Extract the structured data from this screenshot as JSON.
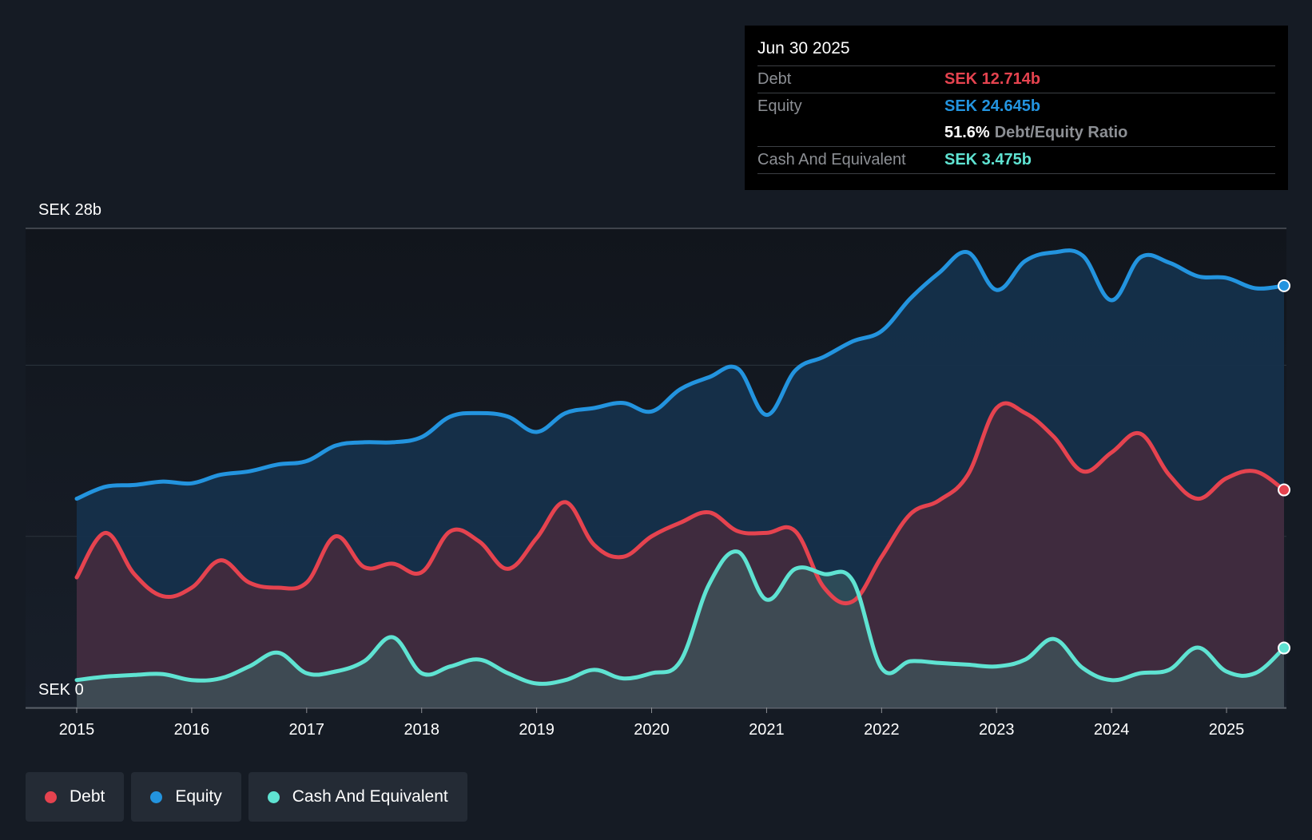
{
  "tooltip": {
    "date": "Jun 30 2025",
    "debt_label": "Debt",
    "debt_value": "SEK 12.714b",
    "equity_label": "Equity",
    "equity_value": "SEK 24.645b",
    "ratio_value": "51.6%",
    "ratio_label": "Debt/Equity Ratio",
    "cash_label": "Cash And Equivalent",
    "cash_value": "SEK 3.475b"
  },
  "legend": [
    {
      "label": "Debt",
      "color": "#e5434f"
    },
    {
      "label": "Equity",
      "color": "#2394df"
    },
    {
      "label": "Cash And Equivalent",
      "color": "#5fe3d2"
    }
  ],
  "chart_data": {
    "type": "area",
    "title": "",
    "ylabel_top": "SEK 28b",
    "ylabel_bottom": "SEK 0",
    "ylim": [
      0,
      28
    ],
    "xlim": [
      2015,
      2025.5
    ],
    "x_ticks": [
      "2015",
      "2016",
      "2017",
      "2018",
      "2019",
      "2020",
      "2021",
      "2022",
      "2023",
      "2024",
      "2025"
    ],
    "gridlines": [
      0,
      10,
      20,
      28
    ],
    "series": [
      {
        "name": "Equity",
        "color": "#2394df",
        "points": [
          [
            2015.0,
            12.2
          ],
          [
            2015.25,
            12.9
          ],
          [
            2015.5,
            13.0
          ],
          [
            2015.75,
            13.2
          ],
          [
            2016.0,
            13.1
          ],
          [
            2016.25,
            13.6
          ],
          [
            2016.5,
            13.8
          ],
          [
            2016.75,
            14.2
          ],
          [
            2017.0,
            14.4
          ],
          [
            2017.25,
            15.3
          ],
          [
            2017.5,
            15.5
          ],
          [
            2017.75,
            15.5
          ],
          [
            2018.0,
            15.8
          ],
          [
            2018.25,
            17.0
          ],
          [
            2018.5,
            17.2
          ],
          [
            2018.75,
            17.0
          ],
          [
            2019.0,
            16.1
          ],
          [
            2019.25,
            17.2
          ],
          [
            2019.5,
            17.5
          ],
          [
            2019.75,
            17.8
          ],
          [
            2020.0,
            17.3
          ],
          [
            2020.25,
            18.6
          ],
          [
            2020.5,
            19.3
          ],
          [
            2020.75,
            19.8
          ],
          [
            2021.0,
            17.1
          ],
          [
            2021.25,
            19.7
          ],
          [
            2021.5,
            20.5
          ],
          [
            2021.75,
            21.4
          ],
          [
            2022.0,
            22.0
          ],
          [
            2022.25,
            23.9
          ],
          [
            2022.5,
            25.4
          ],
          [
            2022.75,
            26.6
          ],
          [
            2023.0,
            24.4
          ],
          [
            2023.25,
            26.1
          ],
          [
            2023.5,
            26.6
          ],
          [
            2023.75,
            26.4
          ],
          [
            2024.0,
            23.8
          ],
          [
            2024.25,
            26.3
          ],
          [
            2024.5,
            26.0
          ],
          [
            2024.75,
            25.2
          ],
          [
            2025.0,
            25.1
          ],
          [
            2025.25,
            24.5
          ],
          [
            2025.5,
            24.645
          ]
        ]
      },
      {
        "name": "Debt",
        "color": "#e5434f",
        "points": [
          [
            2015.0,
            7.6
          ],
          [
            2015.25,
            10.2
          ],
          [
            2015.5,
            7.8
          ],
          [
            2015.75,
            6.5
          ],
          [
            2016.0,
            7.0
          ],
          [
            2016.25,
            8.6
          ],
          [
            2016.5,
            7.3
          ],
          [
            2016.75,
            7.0
          ],
          [
            2017.0,
            7.3
          ],
          [
            2017.25,
            10.0
          ],
          [
            2017.5,
            8.2
          ],
          [
            2017.75,
            8.4
          ],
          [
            2018.0,
            7.9
          ],
          [
            2018.25,
            10.3
          ],
          [
            2018.5,
            9.7
          ],
          [
            2018.75,
            8.1
          ],
          [
            2019.0,
            9.9
          ],
          [
            2019.25,
            12.0
          ],
          [
            2019.5,
            9.5
          ],
          [
            2019.75,
            8.8
          ],
          [
            2020.0,
            10.0
          ],
          [
            2020.25,
            10.8
          ],
          [
            2020.5,
            11.4
          ],
          [
            2020.75,
            10.3
          ],
          [
            2021.0,
            10.2
          ],
          [
            2021.25,
            10.3
          ],
          [
            2021.5,
            7.0
          ],
          [
            2021.75,
            6.2
          ],
          [
            2022.0,
            8.8
          ],
          [
            2022.25,
            11.3
          ],
          [
            2022.5,
            12.1
          ],
          [
            2022.75,
            13.6
          ],
          [
            2023.0,
            17.5
          ],
          [
            2023.25,
            17.2
          ],
          [
            2023.5,
            15.8
          ],
          [
            2023.75,
            13.8
          ],
          [
            2024.0,
            14.9
          ],
          [
            2024.25,
            16.0
          ],
          [
            2024.5,
            13.6
          ],
          [
            2024.75,
            12.2
          ],
          [
            2025.0,
            13.4
          ],
          [
            2025.25,
            13.8
          ],
          [
            2025.5,
            12.714
          ]
        ]
      },
      {
        "name": "Cash And Equivalent",
        "color": "#5fe3d2",
        "points": [
          [
            2015.0,
            1.6
          ],
          [
            2015.25,
            1.8
          ],
          [
            2015.5,
            1.9
          ],
          [
            2015.75,
            1.95
          ],
          [
            2016.0,
            1.6
          ],
          [
            2016.25,
            1.7
          ],
          [
            2016.5,
            2.4
          ],
          [
            2016.75,
            3.2
          ],
          [
            2017.0,
            2.0
          ],
          [
            2017.25,
            2.1
          ],
          [
            2017.5,
            2.7
          ],
          [
            2017.75,
            4.1
          ],
          [
            2018.0,
            2.0
          ],
          [
            2018.25,
            2.4
          ],
          [
            2018.5,
            2.8
          ],
          [
            2018.75,
            2.0
          ],
          [
            2019.0,
            1.4
          ],
          [
            2019.25,
            1.6
          ],
          [
            2019.5,
            2.2
          ],
          [
            2019.75,
            1.7
          ],
          [
            2020.0,
            2.0
          ],
          [
            2020.25,
            2.7
          ],
          [
            2020.5,
            7.2
          ],
          [
            2020.75,
            9.1
          ],
          [
            2021.0,
            6.3
          ],
          [
            2021.25,
            8.1
          ],
          [
            2021.5,
            7.8
          ],
          [
            2021.75,
            7.4
          ],
          [
            2022.0,
            2.3
          ],
          [
            2022.25,
            2.7
          ],
          [
            2022.5,
            2.6
          ],
          [
            2022.75,
            2.5
          ],
          [
            2023.0,
            2.4
          ],
          [
            2023.25,
            2.8
          ],
          [
            2023.5,
            4.0
          ],
          [
            2023.75,
            2.3
          ],
          [
            2024.0,
            1.6
          ],
          [
            2024.25,
            2.0
          ],
          [
            2024.5,
            2.2
          ],
          [
            2024.75,
            3.5
          ],
          [
            2025.0,
            2.1
          ],
          [
            2025.25,
            2.0
          ],
          [
            2025.5,
            3.475
          ]
        ]
      }
    ]
  }
}
